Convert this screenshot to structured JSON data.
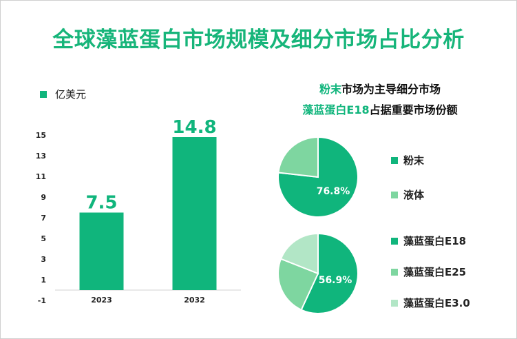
{
  "title": "全球藻蓝蛋白市场规模及细分市场占比分析",
  "colors": {
    "primary": "#10b57c",
    "light": "#7ed6a0",
    "lighter": "#b2e6c6",
    "title": "#17b57a"
  },
  "chart_data": [
    {
      "type": "bar",
      "unit_label": "亿美元",
      "categories": [
        "2023",
        "2032"
      ],
      "values": [
        7.5,
        14.8
      ],
      "data_labels": [
        "7.5",
        "14.8"
      ],
      "yticks": [
        "-1",
        "1",
        "3",
        "5",
        "7",
        "9",
        "11",
        "13",
        "15"
      ],
      "ylim": [
        -1,
        15
      ]
    },
    {
      "type": "pie",
      "headline": {
        "highlight": "粉末",
        "rest": "市场为主导细分市场"
      },
      "categories": [
        "粉末",
        "液体"
      ],
      "values": [
        76.8,
        23.2
      ],
      "data_label": "76.8%"
    },
    {
      "type": "pie",
      "headline": {
        "highlight": "藻蓝蛋白E18",
        "rest": "占据重要市场份额"
      },
      "categories": [
        "藻蓝蛋白E18",
        "藻蓝蛋白E25",
        "藻蓝蛋白E3.0"
      ],
      "values": [
        56.9,
        24.1,
        19.0
      ],
      "data_label": "56.9%"
    }
  ]
}
